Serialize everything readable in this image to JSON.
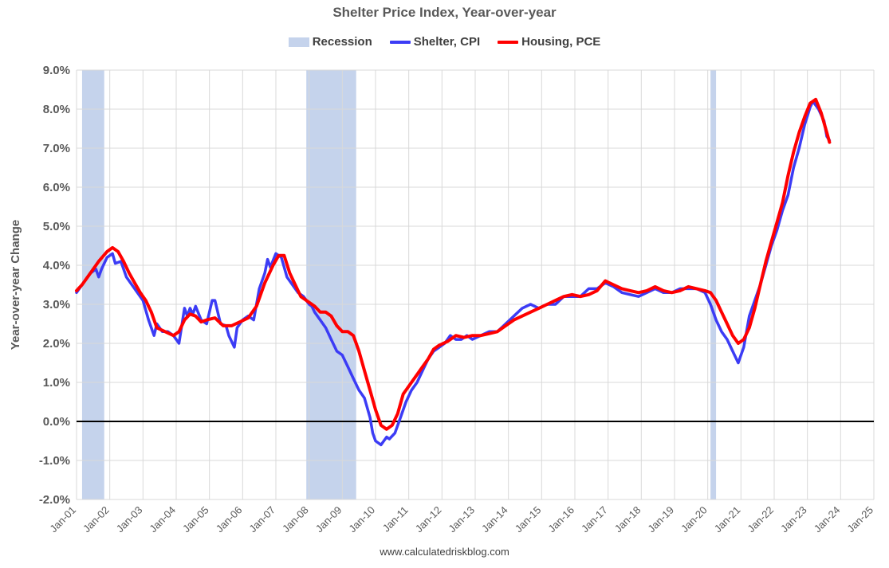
{
  "chart_data": {
    "type": "line",
    "title": "Shelter Price Index, Year-over-year",
    "xlabel": "",
    "ylabel": "Year-over-year Change",
    "source": "www.calculatedriskblog.com",
    "y_unit": "%",
    "ylim": [
      -2.0,
      9.0
    ],
    "xlim": [
      "2001-01",
      "2025-01"
    ],
    "grid": true,
    "legend_position": "top",
    "y_ticks": [
      "9.0%",
      "8.0%",
      "7.0%",
      "6.0%",
      "5.0%",
      "4.0%",
      "3.0%",
      "2.0%",
      "1.0%",
      "0.0%",
      "-1.0%",
      "-2.0%"
    ],
    "x_ticks": [
      "Jan-01",
      "Jan-02",
      "Jan-03",
      "Jan-04",
      "Jan-05",
      "Jan-06",
      "Jan-07",
      "Jan-08",
      "Jan-09",
      "Jan-10",
      "Jan-11",
      "Jan-12",
      "Jan-13",
      "Jan-14",
      "Jan-15",
      "Jan-16",
      "Jan-17",
      "Jan-18",
      "Jan-19",
      "Jan-20",
      "Jan-21",
      "Jan-22",
      "Jan-23",
      "Jan-24",
      "Jan-25"
    ],
    "recessions": {
      "name": "Recession",
      "color": "#c5d3ec",
      "periods": [
        [
          "2001-03",
          "2001-11"
        ],
        [
          "2007-12",
          "2009-06"
        ],
        [
          "2020-02",
          "2020-04"
        ]
      ]
    },
    "series": [
      {
        "name": "Shelter, CPI",
        "color": "#3c3cf5",
        "points": [
          [
            "2001-01",
            3.3
          ],
          [
            "2001-03",
            3.5
          ],
          [
            "2001-06",
            3.8
          ],
          [
            "2001-08",
            3.9
          ],
          [
            "2001-09",
            3.7
          ],
          [
            "2001-10",
            3.9
          ],
          [
            "2001-12",
            4.2
          ],
          [
            "2002-02",
            4.3
          ],
          [
            "2002-03",
            4.05
          ],
          [
            "2002-05",
            4.1
          ],
          [
            "2002-07",
            3.7
          ],
          [
            "2002-09",
            3.5
          ],
          [
            "2002-11",
            3.3
          ],
          [
            "2003-01",
            3.1
          ],
          [
            "2003-03",
            2.6
          ],
          [
            "2003-05",
            2.2
          ],
          [
            "2003-06",
            2.5
          ],
          [
            "2003-08",
            2.3
          ],
          [
            "2003-10",
            2.3
          ],
          [
            "2003-12",
            2.2
          ],
          [
            "2004-02",
            2.0
          ],
          [
            "2004-04",
            2.9
          ],
          [
            "2004-05",
            2.7
          ],
          [
            "2004-06",
            2.9
          ],
          [
            "2004-07",
            2.75
          ],
          [
            "2004-08",
            2.95
          ],
          [
            "2004-10",
            2.6
          ],
          [
            "2004-12",
            2.5
          ],
          [
            "2005-02",
            3.1
          ],
          [
            "2005-03",
            3.1
          ],
          [
            "2005-05",
            2.5
          ],
          [
            "2005-07",
            2.45
          ],
          [
            "2005-08",
            2.2
          ],
          [
            "2005-10",
            1.9
          ],
          [
            "2005-11",
            2.4
          ],
          [
            "2006-01",
            2.6
          ],
          [
            "2006-03",
            2.7
          ],
          [
            "2006-05",
            2.6
          ],
          [
            "2006-07",
            3.4
          ],
          [
            "2006-09",
            3.8
          ],
          [
            "2006-10",
            4.15
          ],
          [
            "2006-11",
            3.95
          ],
          [
            "2007-01",
            4.3
          ],
          [
            "2007-03",
            4.2
          ],
          [
            "2007-05",
            3.7
          ],
          [
            "2007-07",
            3.5
          ],
          [
            "2007-09",
            3.3
          ],
          [
            "2007-11",
            3.2
          ],
          [
            "2008-01",
            3.0
          ],
          [
            "2008-02",
            2.95
          ],
          [
            "2008-03",
            2.8
          ],
          [
            "2008-05",
            2.6
          ],
          [
            "2008-07",
            2.4
          ],
          [
            "2008-09",
            2.1
          ],
          [
            "2008-11",
            1.8
          ],
          [
            "2009-01",
            1.7
          ],
          [
            "2009-03",
            1.4
          ],
          [
            "2009-05",
            1.1
          ],
          [
            "2009-07",
            0.8
          ],
          [
            "2009-09",
            0.6
          ],
          [
            "2009-11",
            0.1
          ],
          [
            "2009-12",
            -0.3
          ],
          [
            "2010-01",
            -0.5
          ],
          [
            "2010-03",
            -0.6
          ],
          [
            "2010-05",
            -0.4
          ],
          [
            "2010-06",
            -0.45
          ],
          [
            "2010-08",
            -0.3
          ],
          [
            "2010-10",
            0.1
          ],
          [
            "2010-12",
            0.5
          ],
          [
            "2011-02",
            0.8
          ],
          [
            "2011-04",
            1.0
          ],
          [
            "2011-06",
            1.3
          ],
          [
            "2011-08",
            1.6
          ],
          [
            "2011-10",
            1.8
          ],
          [
            "2011-12",
            1.9
          ],
          [
            "2012-02",
            2.0
          ],
          [
            "2012-04",
            2.2
          ],
          [
            "2012-06",
            2.1
          ],
          [
            "2012-08",
            2.1
          ],
          [
            "2012-10",
            2.2
          ],
          [
            "2012-12",
            2.1
          ],
          [
            "2013-03",
            2.2
          ],
          [
            "2013-06",
            2.3
          ],
          [
            "2013-09",
            2.3
          ],
          [
            "2013-12",
            2.5
          ],
          [
            "2014-03",
            2.7
          ],
          [
            "2014-06",
            2.9
          ],
          [
            "2014-09",
            3.0
          ],
          [
            "2014-12",
            2.9
          ],
          [
            "2015-03",
            3.0
          ],
          [
            "2015-06",
            3.0
          ],
          [
            "2015-09",
            3.2
          ],
          [
            "2015-12",
            3.2
          ],
          [
            "2016-03",
            3.2
          ],
          [
            "2016-06",
            3.4
          ],
          [
            "2016-09",
            3.4
          ],
          [
            "2016-12",
            3.55
          ],
          [
            "2017-03",
            3.45
          ],
          [
            "2017-06",
            3.3
          ],
          [
            "2017-09",
            3.25
          ],
          [
            "2017-12",
            3.2
          ],
          [
            "2018-03",
            3.3
          ],
          [
            "2018-06",
            3.4
          ],
          [
            "2018-09",
            3.3
          ],
          [
            "2018-12",
            3.3
          ],
          [
            "2019-03",
            3.4
          ],
          [
            "2019-06",
            3.4
          ],
          [
            "2019-09",
            3.4
          ],
          [
            "2019-12",
            3.3
          ],
          [
            "2020-02",
            3.0
          ],
          [
            "2020-04",
            2.6
          ],
          [
            "2020-06",
            2.3
          ],
          [
            "2020-08",
            2.1
          ],
          [
            "2020-10",
            1.8
          ],
          [
            "2020-12",
            1.5
          ],
          [
            "2021-02",
            1.9
          ],
          [
            "2021-04",
            2.7
          ],
          [
            "2021-06",
            3.1
          ],
          [
            "2021-08",
            3.5
          ],
          [
            "2021-10",
            4.0
          ],
          [
            "2021-12",
            4.5
          ],
          [
            "2022-02",
            4.9
          ],
          [
            "2022-04",
            5.4
          ],
          [
            "2022-06",
            5.8
          ],
          [
            "2022-08",
            6.5
          ],
          [
            "2022-10",
            7.0
          ],
          [
            "2022-12",
            7.6
          ],
          [
            "2023-02",
            8.05
          ],
          [
            "2023-03",
            8.2
          ],
          [
            "2023-05",
            8.0
          ],
          [
            "2023-07",
            7.7
          ],
          [
            "2023-08",
            7.3
          ],
          [
            "2023-09",
            7.2
          ]
        ]
      },
      {
        "name": "Housing, PCE",
        "color": "#ff0000",
        "points": [
          [
            "2001-01",
            3.35
          ],
          [
            "2001-03",
            3.5
          ],
          [
            "2001-06",
            3.8
          ],
          [
            "2001-09",
            4.1
          ],
          [
            "2001-12",
            4.35
          ],
          [
            "2002-02",
            4.45
          ],
          [
            "2002-04",
            4.35
          ],
          [
            "2002-06",
            4.1
          ],
          [
            "2002-08",
            3.8
          ],
          [
            "2002-10",
            3.55
          ],
          [
            "2002-12",
            3.3
          ],
          [
            "2003-02",
            3.1
          ],
          [
            "2003-04",
            2.8
          ],
          [
            "2003-06",
            2.4
          ],
          [
            "2003-09",
            2.3
          ],
          [
            "2003-12",
            2.2
          ],
          [
            "2004-02",
            2.3
          ],
          [
            "2004-04",
            2.6
          ],
          [
            "2004-06",
            2.75
          ],
          [
            "2004-08",
            2.7
          ],
          [
            "2004-10",
            2.55
          ],
          [
            "2004-12",
            2.6
          ],
          [
            "2005-03",
            2.65
          ],
          [
            "2005-06",
            2.45
          ],
          [
            "2005-09",
            2.45
          ],
          [
            "2005-12",
            2.55
          ],
          [
            "2006-03",
            2.65
          ],
          [
            "2006-06",
            2.95
          ],
          [
            "2006-09",
            3.55
          ],
          [
            "2006-12",
            4.0
          ],
          [
            "2007-02",
            4.25
          ],
          [
            "2007-04",
            4.25
          ],
          [
            "2007-06",
            3.8
          ],
          [
            "2007-08",
            3.5
          ],
          [
            "2007-10",
            3.2
          ],
          [
            "2007-12",
            3.1
          ],
          [
            "2008-03",
            2.95
          ],
          [
            "2008-05",
            2.8
          ],
          [
            "2008-07",
            2.8
          ],
          [
            "2008-09",
            2.7
          ],
          [
            "2008-11",
            2.45
          ],
          [
            "2009-01",
            2.3
          ],
          [
            "2009-03",
            2.3
          ],
          [
            "2009-05",
            2.2
          ],
          [
            "2009-07",
            1.8
          ],
          [
            "2009-09",
            1.3
          ],
          [
            "2009-11",
            0.8
          ],
          [
            "2010-01",
            0.3
          ],
          [
            "2010-03",
            -0.1
          ],
          [
            "2010-05",
            -0.2
          ],
          [
            "2010-07",
            -0.1
          ],
          [
            "2010-09",
            0.2
          ],
          [
            "2010-11",
            0.7
          ],
          [
            "2011-02",
            1.0
          ],
          [
            "2011-04",
            1.2
          ],
          [
            "2011-06",
            1.4
          ],
          [
            "2011-08",
            1.6
          ],
          [
            "2011-10",
            1.85
          ],
          [
            "2011-12",
            1.95
          ],
          [
            "2012-03",
            2.05
          ],
          [
            "2012-06",
            2.2
          ],
          [
            "2012-09",
            2.15
          ],
          [
            "2012-12",
            2.2
          ],
          [
            "2013-03",
            2.2
          ],
          [
            "2013-06",
            2.25
          ],
          [
            "2013-09",
            2.3
          ],
          [
            "2013-12",
            2.45
          ],
          [
            "2014-03",
            2.6
          ],
          [
            "2014-06",
            2.7
          ],
          [
            "2014-09",
            2.8
          ],
          [
            "2014-12",
            2.9
          ],
          [
            "2015-03",
            3.0
          ],
          [
            "2015-06",
            3.1
          ],
          [
            "2015-09",
            3.2
          ],
          [
            "2015-12",
            3.25
          ],
          [
            "2016-03",
            3.2
          ],
          [
            "2016-06",
            3.25
          ],
          [
            "2016-09",
            3.35
          ],
          [
            "2016-12",
            3.6
          ],
          [
            "2017-03",
            3.5
          ],
          [
            "2017-06",
            3.4
          ],
          [
            "2017-09",
            3.35
          ],
          [
            "2017-12",
            3.3
          ],
          [
            "2018-03",
            3.35
          ],
          [
            "2018-06",
            3.45
          ],
          [
            "2018-09",
            3.35
          ],
          [
            "2018-12",
            3.3
          ],
          [
            "2019-03",
            3.35
          ],
          [
            "2019-06",
            3.45
          ],
          [
            "2019-09",
            3.4
          ],
          [
            "2019-12",
            3.35
          ],
          [
            "2020-02",
            3.3
          ],
          [
            "2020-04",
            3.1
          ],
          [
            "2020-06",
            2.8
          ],
          [
            "2020-08",
            2.5
          ],
          [
            "2020-10",
            2.2
          ],
          [
            "2020-12",
            2.0
          ],
          [
            "2021-02",
            2.1
          ],
          [
            "2021-04",
            2.4
          ],
          [
            "2021-06",
            2.9
          ],
          [
            "2021-08",
            3.5
          ],
          [
            "2021-10",
            4.1
          ],
          [
            "2021-12",
            4.6
          ],
          [
            "2022-02",
            5.1
          ],
          [
            "2022-04",
            5.6
          ],
          [
            "2022-06",
            6.3
          ],
          [
            "2022-08",
            6.9
          ],
          [
            "2022-10",
            7.4
          ],
          [
            "2022-12",
            7.8
          ],
          [
            "2023-02",
            8.15
          ],
          [
            "2023-04",
            8.25
          ],
          [
            "2023-06",
            7.9
          ],
          [
            "2023-08",
            7.4
          ],
          [
            "2023-09",
            7.15
          ]
        ]
      }
    ]
  }
}
